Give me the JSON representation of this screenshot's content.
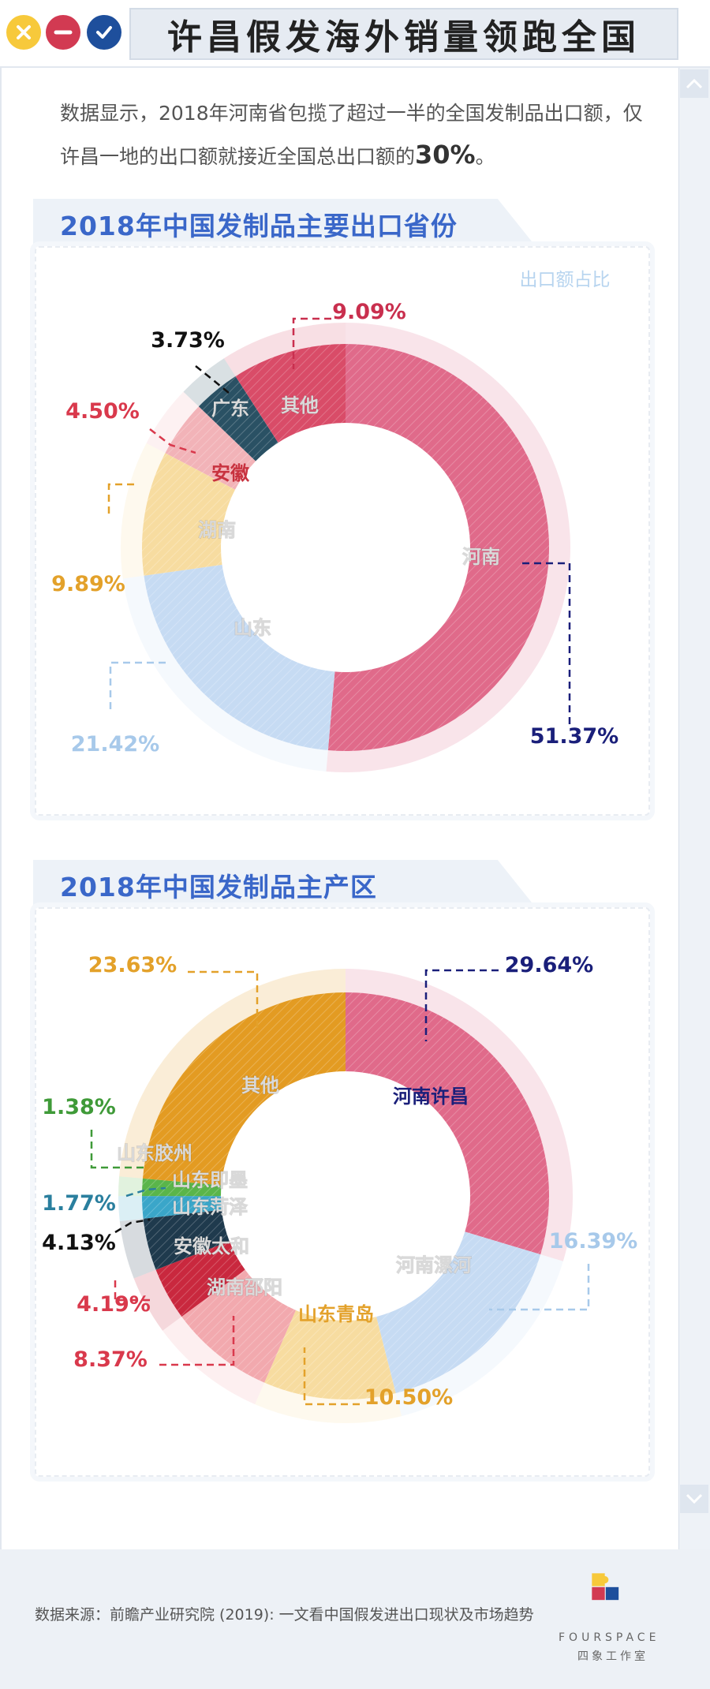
{
  "window": {
    "title": "许昌假发海外销量领跑全国"
  },
  "intro": {
    "text_before": "数据显示，2018年河南省包揽了超过一半的全国发制品出口额，仅许昌一地的出口额就接近全国总出口额的",
    "highlight": "30%",
    "text_after": "。"
  },
  "chart_data": [
    {
      "type": "pie",
      "title": "2018年中国发制品主要出口省份",
      "subtitle": "出口额占比",
      "slices": [
        {
          "label": "河南",
          "value": 51.37,
          "value_label": "51.37%",
          "color": "#e06a8a",
          "label_color": "#ffffff",
          "value_color": "#1a1f7a"
        },
        {
          "label": "山东",
          "value": 21.42,
          "value_label": "21.42%",
          "color": "#c6dbf3",
          "label_color": "#ffffff",
          "value_color": "#a7c9ea"
        },
        {
          "label": "湖南",
          "value": 9.89,
          "value_label": "9.89%",
          "color": "#f7dca0",
          "label_color": "#ffffff",
          "value_color": "#e3a12a"
        },
        {
          "label": "安徽",
          "value": 4.5,
          "value_label": "4.50%",
          "color": "#f2b3b8",
          "label_color": "#c8323f",
          "value_color": "#d9394c"
        },
        {
          "label": "广东",
          "value": 3.73,
          "value_label": "3.73%",
          "color": "#2a5164",
          "label_color": "#ffffff",
          "value_color": "#111111"
        },
        {
          "label": "其他",
          "value": 9.09,
          "value_label": "9.09%",
          "color": "#d94c68",
          "label_color": "#ffffff",
          "value_color": "#c92f4e"
        }
      ]
    },
    {
      "type": "pie",
      "title": "2018年中国发制品主产区",
      "slices": [
        {
          "label": "河南许昌",
          "value": 29.64,
          "value_label": "29.64%",
          "color": "#e06a8a",
          "label_color": "#1a1f7a",
          "value_color": "#1a1f7a"
        },
        {
          "label": "河南漯河",
          "value": 16.39,
          "value_label": "16.39%",
          "color": "#c6dbf3",
          "label_color": "#ffffff",
          "value_color": "#a7c9ea"
        },
        {
          "label": "山东青岛",
          "value": 10.5,
          "value_label": "10.50%",
          "color": "#f7dca0",
          "label_color": "#e3a12a",
          "value_color": "#e3a12a"
        },
        {
          "label": "湖南邵阳",
          "value": 8.37,
          "value_label": "8.37%",
          "color": "#f2a9ae",
          "label_color": "#ffffff",
          "value_color": "#d9394c"
        },
        {
          "label": "安徽太和",
          "value": 4.19,
          "value_label": "4.19%",
          "color": "#c9283e",
          "label_color": "#ffffff",
          "value_color": "#d9394c"
        },
        {
          "label": "山东菏泽",
          "value": 4.13,
          "value_label": "4.13%",
          "color": "#1f3a4d",
          "label_color": "#ffffff",
          "value_color": "#111111"
        },
        {
          "label": "山东即墨",
          "value": 1.77,
          "value_label": "1.77%",
          "color": "#3aa6c9",
          "label_color": "#ffffff",
          "value_color": "#2a7f9e"
        },
        {
          "label": "山东胶州",
          "value": 1.38,
          "value_label": "1.38%",
          "color": "#5ab54a",
          "label_color": "#ffffff",
          "value_color": "#3f9a38"
        },
        {
          "label": "其他",
          "value": 23.63,
          "value_label": "23.63%",
          "color": "#e39b22",
          "label_color": "#ffffff",
          "value_color": "#e3a12a"
        }
      ]
    }
  ],
  "footer": {
    "source": "数据来源：前瞻产业研究院 (2019): 一文看中国假发进出口现状及市场趋势",
    "brand_en": "FOURSPACE",
    "brand_cn": "四象工作室"
  },
  "icons": {
    "close": "close-icon",
    "minimize": "minus-icon",
    "confirm": "check-icon",
    "scroll_up": "chevron-up-icon",
    "scroll_down": "chevron-down-icon"
  }
}
